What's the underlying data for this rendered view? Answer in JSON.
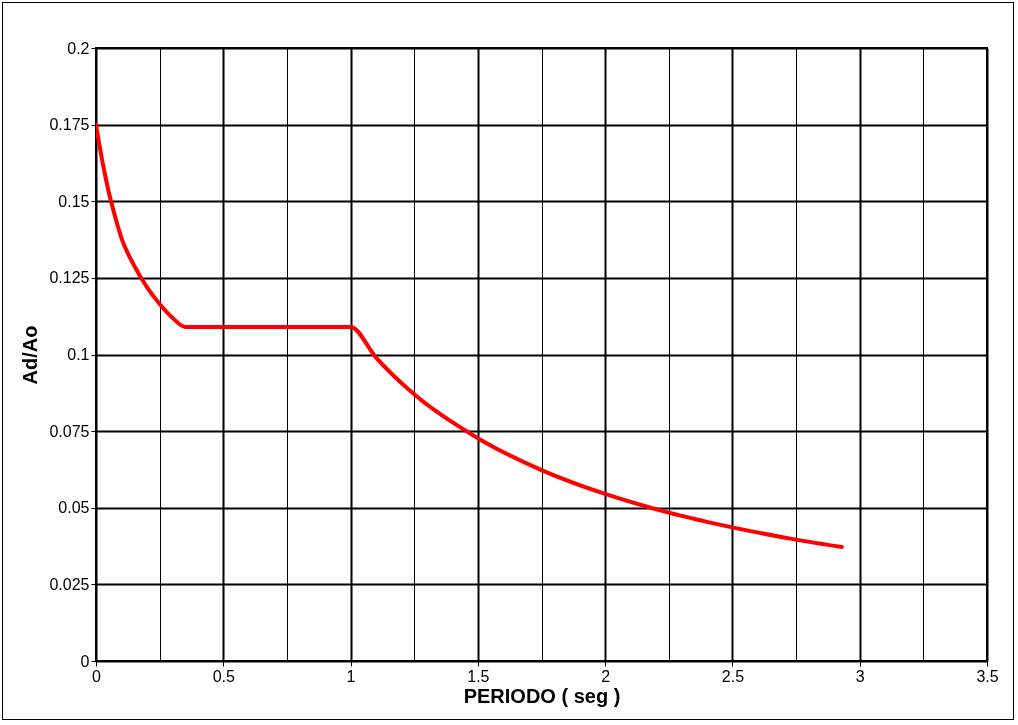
{
  "chart_data": {
    "type": "line",
    "xlabel": "PERIODO ( seg )",
    "ylabel": "Ad/Ao",
    "x": [
      0,
      0.025,
      0.05,
      0.075,
      0.1,
      0.15,
      0.2,
      0.25,
      0.3,
      0.35,
      0.5,
      0.75,
      1,
      1.1,
      1.25,
      1.5,
      1.75,
      2,
      2.25,
      2.5,
      2.75,
      2.93
    ],
    "series": [
      {
        "color": "#ff0000",
        "values": [
          0.175,
          0.163,
          0.153,
          0.145,
          0.138,
          0.129,
          0.122,
          0.1165,
          0.112,
          0.109,
          0.109,
          0.109,
          0.109,
          0.099,
          0.087,
          0.0727,
          0.0623,
          0.0545,
          0.0484,
          0.0436,
          0.0396,
          0.0372
        ]
      }
    ],
    "xlim": [
      0,
      3.5
    ],
    "ylim": [
      0,
      0.2
    ],
    "xticks": [
      0,
      {
        "value": 0.25,
        "label": null
      },
      0.5,
      {
        "value": 0.75,
        "label": null
      },
      1,
      {
        "value": 1.25,
        "label": null
      },
      1.5,
      {
        "value": 1.75,
        "label": null
      },
      2,
      {
        "value": 2.25,
        "label": null
      },
      2.5,
      {
        "value": 2.75,
        "label": null
      },
      3,
      {
        "value": 3.25,
        "label": null
      },
      3.5
    ],
    "yticks": [
      0,
      0.025,
      0.05,
      0.075,
      0.1,
      0.125,
      0.15,
      0.175,
      0.2
    ],
    "grid": true,
    "marker": "none",
    "line_style": "solid"
  }
}
